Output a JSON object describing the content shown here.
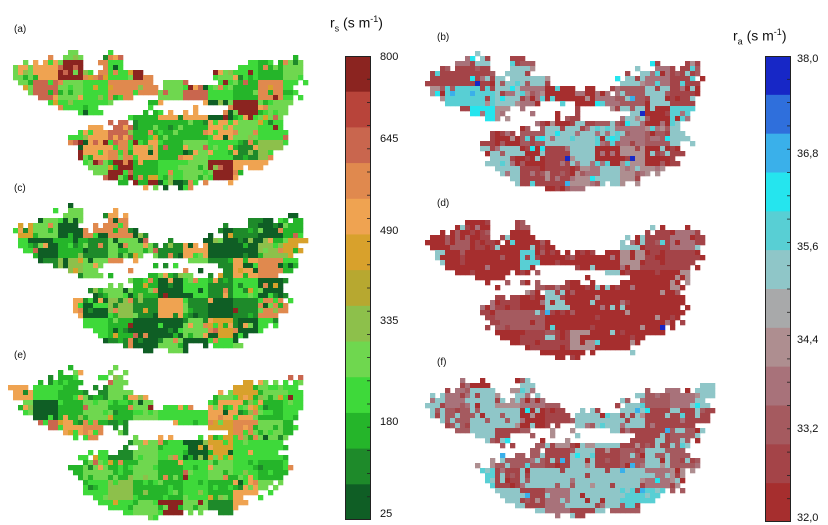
{
  "panels": [
    {
      "label": "(a)",
      "variable": "rs"
    },
    {
      "label": "(c)",
      "variable": "rs"
    },
    {
      "label": "(e)",
      "variable": "rs"
    },
    {
      "label": "(b)",
      "variable": "ra"
    },
    {
      "label": "(d)",
      "variable": "ra"
    },
    {
      "label": "(f)",
      "variable": "ra"
    }
  ],
  "chart_data": [
    {
      "type": "heatmap",
      "title_base": "r",
      "title_sub": "s",
      "title_unit_pre": " (s m",
      "title_unit_sup": "-1",
      "title_unit_post": ")",
      "ticks": [
        "800",
        "645",
        "490",
        "335",
        "180",
        "25"
      ],
      "range": [
        25,
        800
      ],
      "colors": [
        "#8b2420",
        "#b8443a",
        "#c9664e",
        "#e0894e",
        "#efa351",
        "#d8a12c",
        "#b7a830",
        "#8dc04b",
        "#6fd74f",
        "#3ed93a",
        "#25b52a",
        "#1e8a2a",
        "#0f5e25"
      ]
    },
    {
      "type": "heatmap",
      "title_base": "r",
      "title_sub": "a",
      "title_unit_pre": " (s m",
      "title_unit_sup": "-1",
      "title_unit_post": ")",
      "ticks": [
        "38,0",
        "36,8",
        "35,6",
        "34,4",
        "33,2",
        "32,0"
      ],
      "range": [
        32.0,
        38.0
      ],
      "colors": [
        "#1727c6",
        "#2f6fdc",
        "#3ab0ea",
        "#25e5ee",
        "#58cfd4",
        "#8fc6c8",
        "#a8a9aa",
        "#ae8e90",
        "#a8727a",
        "#a55a5f",
        "#a44448",
        "#a62e2e"
      ]
    }
  ]
}
